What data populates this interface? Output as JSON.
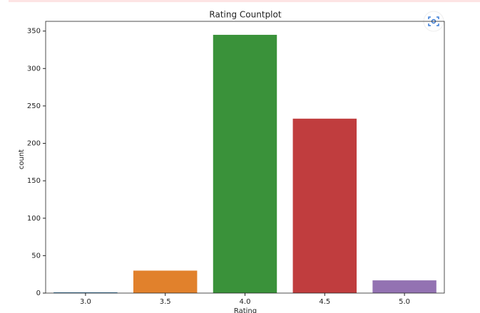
{
  "chart_data": {
    "type": "bar",
    "title": "Rating Countplot",
    "x_label": "Rating",
    "y_label": "count",
    "categories": [
      "3.0",
      "3.5",
      "4.0",
      "4.5",
      "5.0"
    ],
    "values": [
      1,
      30,
      345,
      233,
      17
    ],
    "colors": [
      "#3274a1",
      "#e1812c",
      "#3a923a",
      "#c03d3e",
      "#9372b2"
    ],
    "ylim": [
      0,
      363
    ],
    "yticks": [
      0,
      50,
      100,
      150,
      200,
      250,
      300,
      350
    ],
    "grid": false
  }
}
